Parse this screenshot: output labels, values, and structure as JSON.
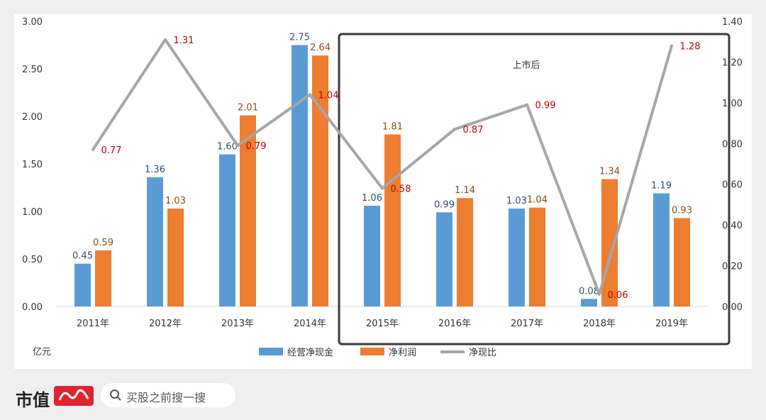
{
  "chart_data": {
    "type": "bar",
    "categories": [
      "2011年",
      "2012年",
      "2013年",
      "2014年",
      "2015年",
      "2016年",
      "2017年",
      "2018年",
      "2019年"
    ],
    "series": [
      {
        "name": "经营净现金",
        "kind": "bar",
        "axis": "left",
        "color": "#5b9bd5",
        "label_color": "#2f4f6f",
        "values": [
          0.45,
          1.36,
          1.6,
          2.75,
          1.06,
          0.99,
          1.03,
          0.08,
          1.19
        ],
        "labels": [
          "0.45",
          "1.36",
          "1.60",
          "2.75",
          "1.06",
          "0.99",
          "1.03",
          "0.08",
          "1.19"
        ]
      },
      {
        "name": "净利润",
        "kind": "bar",
        "axis": "left",
        "color": "#ed7d31",
        "label_color": "#8a4a12",
        "values": [
          0.59,
          1.03,
          2.01,
          2.64,
          1.81,
          1.14,
          1.04,
          1.34,
          0.93
        ],
        "labels": [
          "0.59",
          "1.03",
          "2.01",
          "2.64",
          "1.81",
          "1.14",
          "1.04",
          "1.34",
          "0.93"
        ]
      },
      {
        "name": "净现比",
        "kind": "line",
        "axis": "right",
        "color": "#a6a6a6",
        "label_color": "#c00000",
        "values": [
          0.77,
          1.31,
          0.79,
          1.04,
          0.58,
          0.87,
          0.99,
          0.06,
          1.28
        ],
        "labels": [
          "0.77",
          "1.31",
          "0.79",
          "1.04",
          "0.58",
          "0.87",
          "0.99",
          "0.06",
          "1.28"
        ]
      }
    ],
    "ylim_left": [
      0,
      3
    ],
    "yticks_left": [
      "0.00",
      "0.50",
      "1.00",
      "1.50",
      "2.00",
      "2.50",
      "3.00"
    ],
    "ylim_right": [
      0,
      1.4
    ],
    "yticks_right": [
      "0.00",
      "0.20",
      "0.40",
      "0.60",
      "0.80",
      "1.00",
      "1.20",
      "1.40"
    ],
    "ylabel": "亿元",
    "annotation": "上市后",
    "highlight_from_category": "2015年",
    "annotation_color": "#1e9be8",
    "grid": true,
    "legend_position": "bottom"
  },
  "footer": {
    "brand": "市值",
    "logo": "风云",
    "search_placeholder": "买股之前搜一搜"
  },
  "watermark": "市值风云"
}
